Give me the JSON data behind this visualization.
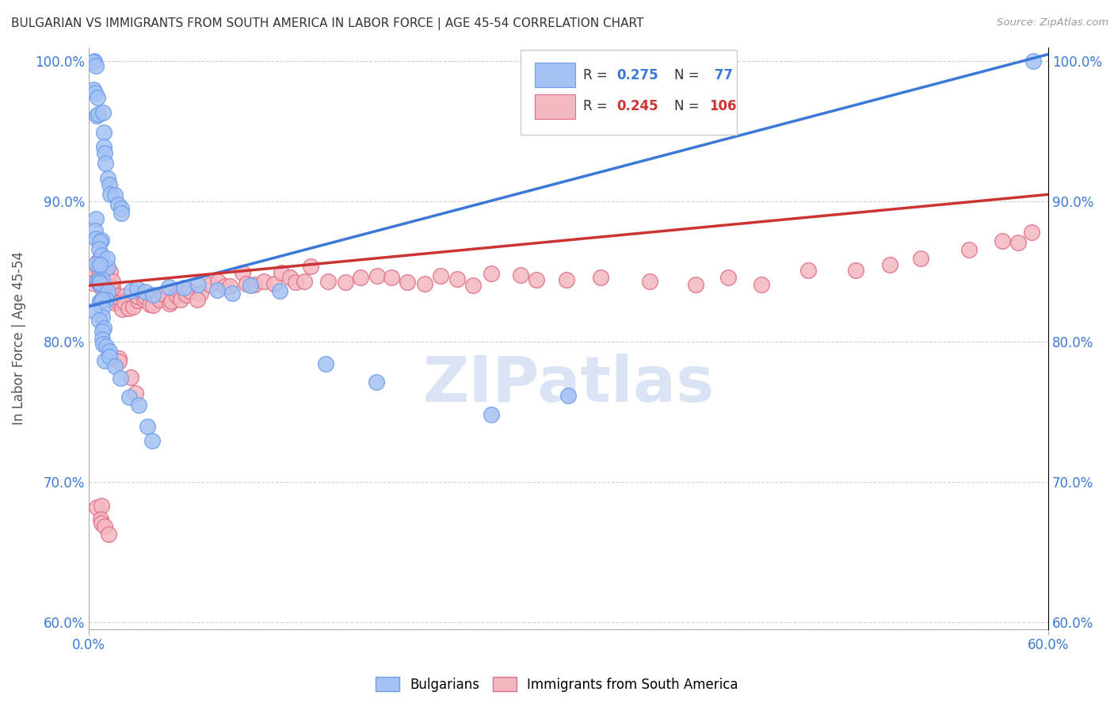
{
  "title": "BULGARIAN VS IMMIGRANTS FROM SOUTH AMERICA IN LABOR FORCE | AGE 45-54 CORRELATION CHART",
  "source": "Source: ZipAtlas.com",
  "ylabel": "In Labor Force | Age 45-54",
  "xlim": [
    0.0,
    0.6
  ],
  "ylim": [
    0.595,
    1.01
  ],
  "ytick_labels": [
    "60.0%",
    "70.0%",
    "80.0%",
    "90.0%",
    "100.0%"
  ],
  "ytick_values": [
    0.6,
    0.7,
    0.8,
    0.9,
    1.0
  ],
  "blue_color": "#a4c2f4",
  "pink_color": "#f4b8c1",
  "blue_edge_color": "#6d9eeb",
  "pink_edge_color": "#e06c85",
  "blue_line_color": "#3c78d8",
  "pink_line_color": "#cc3333",
  "tick_color": "#3c78d8",
  "watermark_color": "#ccd9f0",
  "blue_line_x": [
    0.0,
    0.6
  ],
  "blue_line_y": [
    0.825,
    1.005
  ],
  "pink_line_x": [
    0.0,
    0.6
  ],
  "pink_line_y": [
    0.84,
    0.905
  ],
  "blue_x": [
    0.002,
    0.003,
    0.003,
    0.004,
    0.005,
    0.005,
    0.006,
    0.007,
    0.008,
    0.009,
    0.01,
    0.01,
    0.01,
    0.012,
    0.013,
    0.015,
    0.016,
    0.018,
    0.02,
    0.022,
    0.003,
    0.004,
    0.005,
    0.006,
    0.007,
    0.008,
    0.009,
    0.01,
    0.011,
    0.012,
    0.005,
    0.006,
    0.007,
    0.008,
    0.009,
    0.007,
    0.008,
    0.009,
    0.01,
    0.011,
    0.006,
    0.007,
    0.008,
    0.009,
    0.01,
    0.005,
    0.006,
    0.007,
    0.008,
    0.009,
    0.025,
    0.03,
    0.035,
    0.04,
    0.05,
    0.06,
    0.07,
    0.08,
    0.09,
    0.1,
    0.12,
    0.15,
    0.18,
    0.25,
    0.3,
    0.01,
    0.012,
    0.011,
    0.013,
    0.014,
    0.015,
    0.02,
    0.025,
    0.03,
    0.035,
    0.04,
    0.59
  ],
  "blue_y": [
    1.0,
    1.0,
    0.985,
    0.995,
    0.975,
    0.96,
    0.965,
    0.975,
    0.965,
    0.95,
    0.935,
    0.93,
    0.925,
    0.915,
    0.91,
    0.905,
    0.905,
    0.9,
    0.895,
    0.885,
    0.885,
    0.88,
    0.875,
    0.875,
    0.87,
    0.865,
    0.86,
    0.86,
    0.855,
    0.855,
    0.855,
    0.85,
    0.845,
    0.845,
    0.84,
    0.84,
    0.84,
    0.835,
    0.835,
    0.83,
    0.83,
    0.83,
    0.825,
    0.825,
    0.82,
    0.82,
    0.815,
    0.81,
    0.805,
    0.8,
    0.835,
    0.835,
    0.835,
    0.835,
    0.84,
    0.84,
    0.84,
    0.84,
    0.84,
    0.84,
    0.84,
    0.79,
    0.77,
    0.75,
    0.76,
    0.8,
    0.8,
    0.79,
    0.795,
    0.79,
    0.785,
    0.775,
    0.765,
    0.755,
    0.745,
    0.73,
    1.0
  ],
  "pink_x": [
    0.003,
    0.004,
    0.005,
    0.006,
    0.007,
    0.008,
    0.009,
    0.01,
    0.011,
    0.012,
    0.013,
    0.014,
    0.015,
    0.016,
    0.017,
    0.018,
    0.019,
    0.02,
    0.021,
    0.022,
    0.023,
    0.025,
    0.027,
    0.03,
    0.032,
    0.034,
    0.036,
    0.038,
    0.04,
    0.042,
    0.044,
    0.046,
    0.048,
    0.05,
    0.052,
    0.054,
    0.056,
    0.058,
    0.06,
    0.062,
    0.065,
    0.068,
    0.07,
    0.075,
    0.08,
    0.085,
    0.09,
    0.095,
    0.1,
    0.105,
    0.11,
    0.115,
    0.12,
    0.125,
    0.13,
    0.135,
    0.14,
    0.15,
    0.16,
    0.17,
    0.18,
    0.19,
    0.2,
    0.21,
    0.22,
    0.23,
    0.24,
    0.25,
    0.27,
    0.28,
    0.3,
    0.32,
    0.35,
    0.38,
    0.4,
    0.42,
    0.45,
    0.48,
    0.5,
    0.52,
    0.55,
    0.57,
    0.58,
    0.59,
    0.003,
    0.005,
    0.007,
    0.01,
    0.012,
    0.015,
    0.018,
    0.02,
    0.025,
    0.03,
    0.005,
    0.006,
    0.007,
    0.008,
    0.009,
    0.01,
    0.005,
    0.007,
    0.008,
    0.009,
    0.01,
    0.012
  ],
  "pink_y": [
    0.85,
    0.855,
    0.855,
    0.85,
    0.845,
    0.845,
    0.84,
    0.84,
    0.84,
    0.835,
    0.835,
    0.835,
    0.835,
    0.83,
    0.83,
    0.83,
    0.83,
    0.83,
    0.83,
    0.83,
    0.83,
    0.83,
    0.83,
    0.83,
    0.83,
    0.83,
    0.83,
    0.83,
    0.83,
    0.83,
    0.83,
    0.83,
    0.83,
    0.83,
    0.83,
    0.83,
    0.83,
    0.83,
    0.83,
    0.835,
    0.835,
    0.835,
    0.835,
    0.84,
    0.84,
    0.84,
    0.84,
    0.845,
    0.845,
    0.845,
    0.845,
    0.845,
    0.845,
    0.845,
    0.845,
    0.845,
    0.845,
    0.845,
    0.845,
    0.845,
    0.845,
    0.845,
    0.845,
    0.845,
    0.845,
    0.845,
    0.845,
    0.845,
    0.845,
    0.845,
    0.845,
    0.845,
    0.845,
    0.845,
    0.845,
    0.845,
    0.85,
    0.855,
    0.855,
    0.86,
    0.86,
    0.875,
    0.875,
    0.88,
    0.845,
    0.845,
    0.845,
    0.845,
    0.845,
    0.845,
    0.78,
    0.78,
    0.775,
    0.77,
    0.855,
    0.855,
    0.855,
    0.855,
    0.855,
    0.855,
    0.68,
    0.68,
    0.675,
    0.67,
    0.67,
    0.665
  ]
}
